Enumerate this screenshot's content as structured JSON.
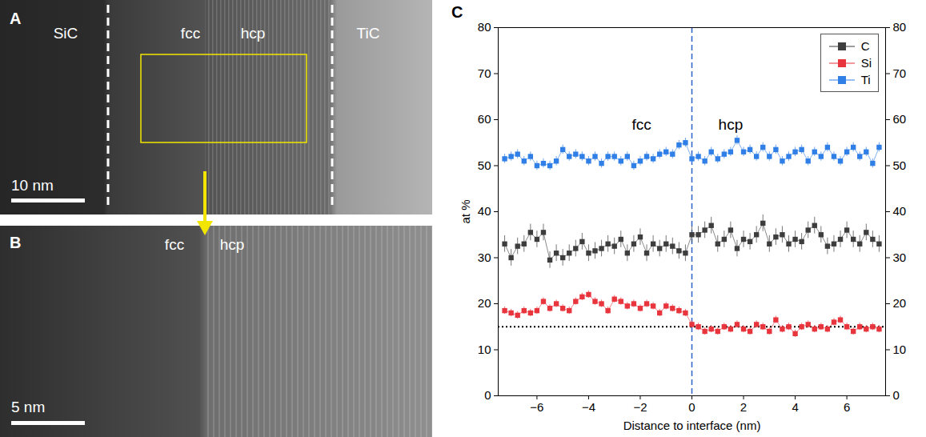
{
  "panels": [
    {
      "letter": "A",
      "labels": [
        "SiC",
        "fcc",
        "hcp",
        "TiC"
      ],
      "scale_bar": "10 nm"
    },
    {
      "letter": "B",
      "labels": [
        "fcc",
        "hcp"
      ],
      "scale_bar": "5 nm"
    },
    {
      "letter": "C"
    }
  ],
  "chart_data": {
    "type": "line",
    "x_label": "Distance to interface (nm)",
    "y_label": "at %",
    "annotations": [
      "fcc",
      "hcp"
    ],
    "xlim": [
      -7.5,
      7.5
    ],
    "xticks": [
      -6,
      -4,
      -2,
      0,
      2,
      4,
      6
    ],
    "ylim": [
      0,
      80
    ],
    "yticks": [
      0,
      10,
      20,
      30,
      40,
      50,
      60,
      70,
      80
    ],
    "y2lim": [
      0,
      80
    ],
    "y2ticks": [
      0,
      10,
      20,
      30,
      40,
      50,
      60,
      70,
      80
    ],
    "grid": false,
    "legend": "top-right",
    "vlines": [
      {
        "x": 0,
        "color": "#2a62c9",
        "line_style": "dashed"
      }
    ],
    "hlines": [
      {
        "y": 15,
        "color": "#000000",
        "line_style": "dotted"
      }
    ],
    "x": [
      -7.25,
      -7,
      -6.75,
      -6.5,
      -6.25,
      -6,
      -5.75,
      -5.5,
      -5.25,
      -5,
      -4.75,
      -4.5,
      -4.25,
      -4,
      -3.75,
      -3.5,
      -3.25,
      -3,
      -2.75,
      -2.5,
      -2.25,
      -2,
      -1.75,
      -1.5,
      -1.25,
      -1,
      -0.75,
      -0.5,
      -0.25,
      0,
      0.25,
      0.5,
      0.75,
      1,
      1.25,
      1.5,
      1.75,
      2,
      2.25,
      2.5,
      2.75,
      3,
      3.25,
      3.5,
      3.75,
      4,
      4.25,
      4.5,
      4.75,
      5,
      5.25,
      5.5,
      5.75,
      6,
      6.25,
      6.5,
      6.75,
      7,
      7.25
    ],
    "series": [
      {
        "name": "C",
        "color": "#3d3d3d",
        "marker": "square",
        "line_style": "solid",
        "error": 1.8,
        "values": [
          33,
          30,
          32.5,
          33,
          35.5,
          34,
          35.5,
          29.5,
          31,
          30,
          31,
          32,
          33.5,
          31,
          31.5,
          32,
          33,
          32.5,
          34,
          31,
          33,
          34.5,
          31,
          33,
          32,
          33,
          32.5,
          31.5,
          31,
          35,
          35,
          36,
          37,
          33,
          34,
          36,
          32,
          34,
          33.5,
          35,
          37.5,
          33,
          34.5,
          35,
          33,
          34,
          33.5,
          36,
          37,
          35,
          32.5,
          33,
          34,
          36,
          34,
          33,
          35.5,
          34,
          33
        ]
      },
      {
        "name": "Si",
        "color": "#e8343c",
        "marker": "square",
        "line_style": "solid",
        "error": 0.8,
        "values": [
          18.5,
          18,
          17.5,
          18.5,
          18,
          18.5,
          20.5,
          19,
          20,
          19,
          18.5,
          20.5,
          21.5,
          22,
          20.5,
          20,
          18.5,
          21,
          20.5,
          19.5,
          20,
          19,
          20,
          19.5,
          18,
          19.5,
          19,
          18.5,
          18,
          15.5,
          15,
          14,
          14.5,
          14,
          15,
          14.5,
          15.5,
          14.5,
          14,
          15.5,
          15,
          14,
          16.5,
          14.5,
          15,
          13.5,
          15,
          15.5,
          14.5,
          15,
          14.5,
          16,
          16.5,
          15,
          14,
          15,
          14.5,
          15,
          14.5
        ]
      },
      {
        "name": "Ti",
        "color": "#2f7fe6",
        "marker": "square",
        "line_style": "solid",
        "error": 1.0,
        "values": [
          51.5,
          52,
          52.5,
          51,
          52,
          50,
          50.5,
          50,
          51,
          53.5,
          52,
          52.5,
          52,
          51,
          52,
          50.5,
          52,
          52,
          51,
          52,
          50,
          51,
          52,
          51.5,
          52.5,
          53,
          52.5,
          54.5,
          55,
          51.5,
          52,
          51,
          53,
          51.5,
          52.5,
          53,
          55.5,
          53,
          53.5,
          52,
          54,
          52,
          53.5,
          51,
          52,
          53,
          53.5,
          51,
          53,
          52,
          54,
          52,
          51,
          53,
          54,
          52,
          53,
          50.5,
          54
        ]
      }
    ]
  }
}
